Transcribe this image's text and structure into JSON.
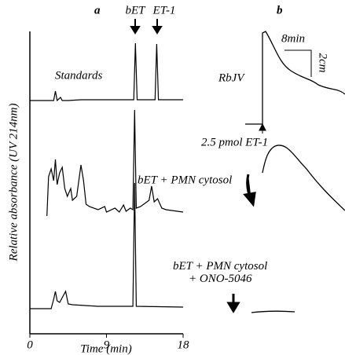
{
  "chart_data": {
    "type": "line",
    "panel_label": "a",
    "xlabel": "Time (min)",
    "ylabel": "Relative absorbance (UV 214nm)",
    "xlim": [
      0,
      18
    ],
    "xticks": [
      0,
      9,
      18
    ],
    "ylim": [
      0,
      170
    ],
    "annotations": [
      "bET",
      "ET-1"
    ],
    "series": [
      {
        "name": "Standards",
        "color": "#000",
        "x": [
          0,
          2.8,
          3.0,
          3.2,
          3.6,
          3.8,
          4.5,
          6,
          12.2,
          12.4,
          12.6,
          14.7,
          14.9,
          15.1,
          18
        ],
        "values": [
          0,
          0,
          12,
          0,
          4,
          0,
          0,
          1,
          1,
          73,
          1,
          1,
          72,
          1,
          1
        ]
      },
      {
        "name": "bET + PMN cytosol",
        "color": "#000",
        "x": [
          2.0,
          2.2,
          2.5,
          2.8,
          3.0,
          3.2,
          3.5,
          3.8,
          4.1,
          4.4,
          4.8,
          5.0,
          5.5,
          6.0,
          6.3,
          6.6,
          7.0,
          8,
          8.8,
          9,
          10,
          10.5,
          11,
          11.3,
          11.8,
          12.1,
          12.3,
          12.5,
          13,
          14,
          14.3,
          14.6,
          15,
          15.5,
          16,
          18
        ],
        "values": [
          0,
          50,
          60,
          45,
          72,
          40,
          55,
          62,
          35,
          25,
          35,
          20,
          25,
          65,
          45,
          15,
          12,
          8,
          12,
          5,
          10,
          5,
          14,
          6,
          10,
          8,
          135,
          10,
          12,
          20,
          38,
          18,
          22,
          10,
          8,
          5
        ]
      },
      {
        "name": "bET + PMN cytosol + ONO-5046",
        "color": "#000",
        "x": [
          0,
          2.5,
          2.8,
          3.0,
          3.2,
          3.5,
          4.2,
          4.5,
          5,
          8,
          12.1,
          12.3,
          12.5,
          18
        ],
        "values": [
          0,
          0,
          12,
          22,
          10,
          8,
          22,
          6,
          5,
          3,
          3,
          160,
          3,
          2
        ]
      }
    ]
  },
  "panel_b": {
    "label": "b",
    "vessel": "RbJV",
    "time_scale": "8min",
    "tension_scale": "2cm",
    "stimulus": "2.5 pmol ET-1"
  }
}
